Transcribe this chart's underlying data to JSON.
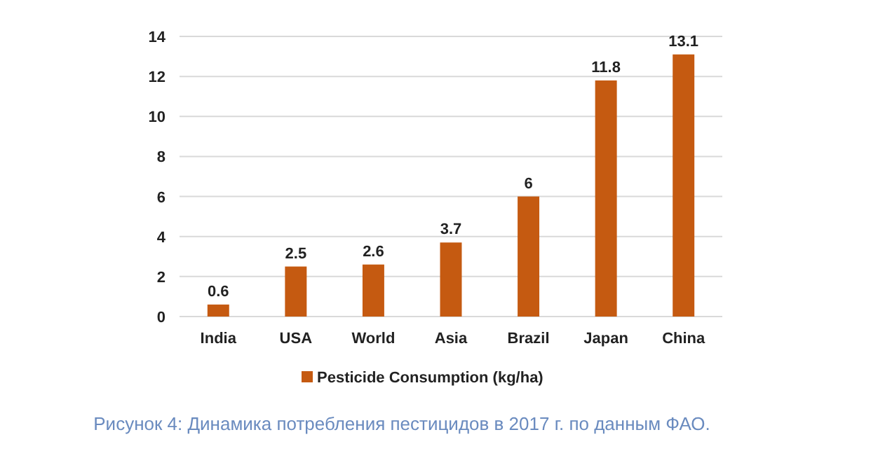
{
  "chart_data": {
    "type": "bar",
    "categories": [
      "India",
      "USA",
      "World",
      "Asia",
      "Brazil",
      "Japan",
      "China"
    ],
    "series": [
      {
        "name": "Pesticide Consumption (kg/ha)",
        "color": "#c55a11",
        "values": [
          0.6,
          2.5,
          2.6,
          3.7,
          6,
          11.8,
          13.1
        ]
      }
    ],
    "ylim": [
      0,
      14
    ],
    "yticks": [
      0,
      2,
      4,
      6,
      8,
      10,
      12,
      14
    ],
    "grid": "y",
    "legend": "bottom",
    "data_labels": true,
    "annotations": [
      "Рисунок 4: Динамика потребления пестицидов в 2017 г. по данным ФАО."
    ]
  }
}
